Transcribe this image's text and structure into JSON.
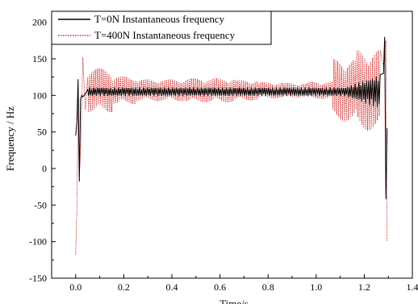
{
  "chart_data": {
    "type": "line",
    "xlabel": "Time/s",
    "ylabel": "Frequency / Hz",
    "xlim": [
      -0.1,
      1.4
    ],
    "ylim": [
      -150,
      215
    ],
    "x_ticks": [
      "0.0",
      "0.2",
      "0.4",
      "0.6",
      "0.8",
      "1.0",
      "1.2",
      "1.4"
    ],
    "y_ticks": [
      "-150",
      "-100",
      "-50",
      "0",
      "50",
      "100",
      "150",
      "200"
    ],
    "grid": false,
    "legend_position": "top-left",
    "series": [
      {
        "name": "T=0N Instantaneous frequency",
        "color": "#000000",
        "line_style": "solid",
        "x": [
          0.0,
          0.005,
          0.01,
          0.015,
          0.02,
          0.025,
          0.03,
          0.04,
          0.05,
          0.1,
          0.2,
          0.3,
          0.4,
          0.5,
          0.6,
          0.7,
          0.8,
          0.9,
          1.0,
          1.1,
          1.15,
          1.2,
          1.22,
          1.25,
          1.27,
          1.28,
          1.285,
          1.29,
          1.295
        ],
        "y": [
          45,
          65,
          122,
          -18,
          95,
          100,
          98,
          102,
          104,
          105,
          105,
          105,
          105,
          105,
          105,
          105,
          105,
          105,
          105,
          105,
          106,
          107,
          110,
          115,
          122,
          130,
          180,
          -42,
          55
        ]
      },
      {
        "name": "T=400N Instantaneous frequency",
        "color": "#cc0000",
        "line_style": "dotted",
        "x": [
          0.0,
          0.005,
          0.01,
          0.015,
          0.02,
          0.03,
          0.04,
          0.05,
          0.1,
          0.2,
          0.3,
          0.4,
          0.5,
          0.6,
          0.7,
          0.8,
          0.9,
          1.0,
          1.1,
          1.15,
          1.2,
          1.25,
          1.27,
          1.28,
          1.29,
          1.295
        ],
        "y": [
          -118,
          -55,
          95,
          -10,
          20,
          152,
          80,
          130,
          107,
          107,
          107,
          107,
          107,
          107,
          107,
          107,
          107,
          107,
          107,
          107,
          110,
          115,
          190,
          140,
          175,
          -100
        ],
        "oscillation_amplitude_hz": [
          60,
          38,
          30,
          30,
          33,
          33,
          28,
          22,
          20,
          24,
          85,
          110
        ]
      }
    ]
  }
}
